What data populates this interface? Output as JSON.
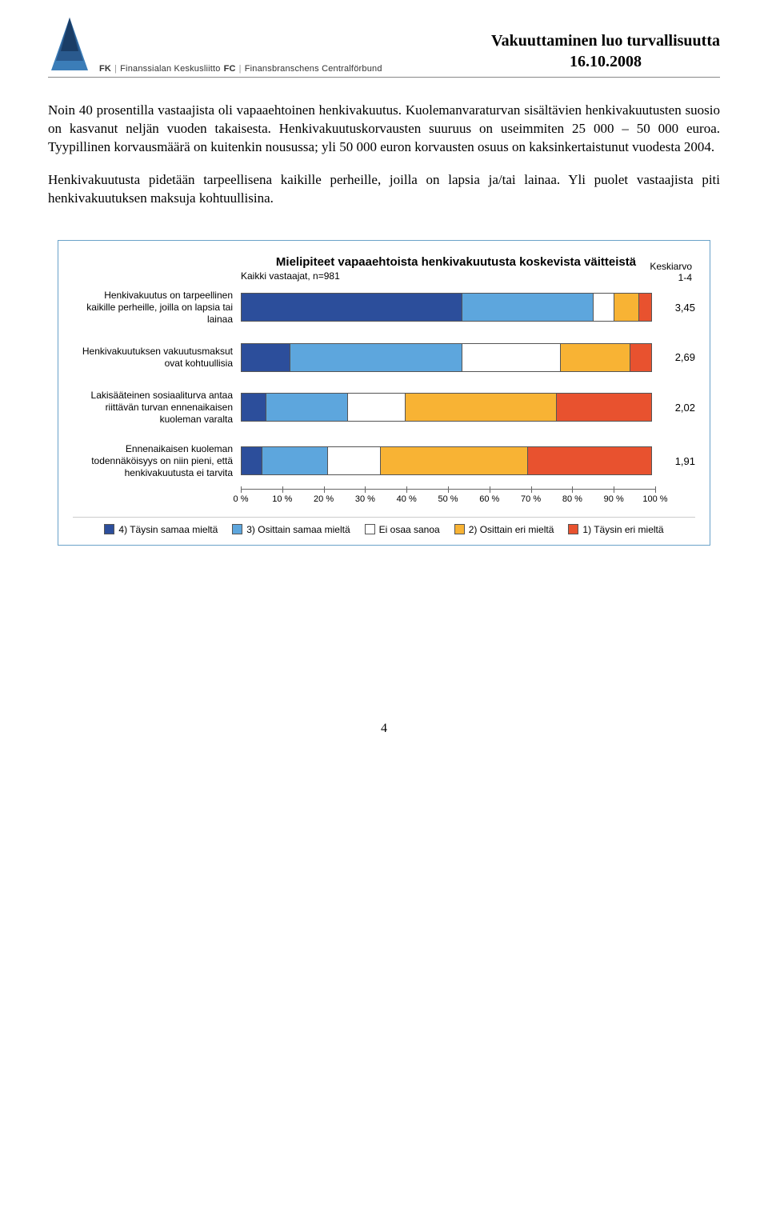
{
  "header": {
    "org_fk": "FK",
    "org_fi": "Finanssialan Keskusliitto",
    "org_fc": "FC",
    "org_sv": "Finansbranschens Centralförbund",
    "title": "Vakuuttaminen luo turvallisuutta",
    "date": "16.10.2008"
  },
  "paragraphs": {
    "p1": "Noin 40 prosentilla vastaajista oli vapaaehtoinen henkivakuutus. Kuolemanvaraturvan sisältävien henkivakuutusten suosio on kasvanut neljän vuoden takaisesta. Henkivakuutuskorvausten suuruus on useimmiten 25 000 – 50 000 euroa. Tyypillinen korvausmäärä on kuitenkin nousussa; yli 50 000 euron korvausten osuus on kaksinkertaistunut vuodesta 2004.",
    "p2": "Henkivakuutusta pidetään tarpeellisena kaikille perheille, joilla on lapsia ja/tai lainaa. Yli puolet vastaajista piti henkivakuutuksen maksuja kohtuullisina."
  },
  "chart": {
    "title": "Mielipiteet vapaaehtoista henkivakuutusta koskevista väitteistä",
    "subtitle": "Kaikki vastaajat, n=981",
    "avg_header_line1": "Keskiarvo",
    "avg_header_line2": "1-4",
    "colors": {
      "c4": "#2c4e9b",
      "c3": "#5da6dd",
      "c0": "#ffffff",
      "c2": "#f8b334",
      "c1": "#e8522f",
      "frame": "#6aa2c9"
    },
    "rows": [
      {
        "label": "Henkivakuutus on tarpeellinen kaikille perheille, joilla on lapsia tai lainaa",
        "segments": [
          54,
          32,
          5,
          6,
          3
        ],
        "avg": "3,45"
      },
      {
        "label": "Henkivakuutuksen vakuutusmaksut ovat kohtuullisia",
        "segments": [
          12,
          42,
          24,
          17,
          5
        ],
        "avg": "2,69"
      },
      {
        "label": "Lakisääteinen sosiaaliturva antaa riittävän turvan ennenaikaisen kuoleman varalta",
        "segments": [
          6,
          20,
          14,
          37,
          23
        ],
        "avg": "2,02"
      },
      {
        "label": "Ennenaikaisen kuoleman todennäköisyys on niin pieni, että henkivakuutusta ei tarvita",
        "segments": [
          5,
          16,
          13,
          36,
          30
        ],
        "avg": "1,91"
      }
    ],
    "ticks": [
      "0 %",
      "10 %",
      "20 %",
      "30 %",
      "40 %",
      "50 %",
      "60 %",
      "70 %",
      "80 %",
      "90 %",
      "100 %"
    ],
    "legend": [
      {
        "key": "c4",
        "label": "4) Täysin samaa mieltä"
      },
      {
        "key": "c3",
        "label": "3) Osittain samaa mieltä"
      },
      {
        "key": "c0",
        "label": "Ei osaa sanoa"
      },
      {
        "key": "c2",
        "label": "2) Osittain eri mieltä"
      },
      {
        "key": "c1",
        "label": "1) Täysin eri mieltä"
      }
    ]
  },
  "page_number": "4"
}
